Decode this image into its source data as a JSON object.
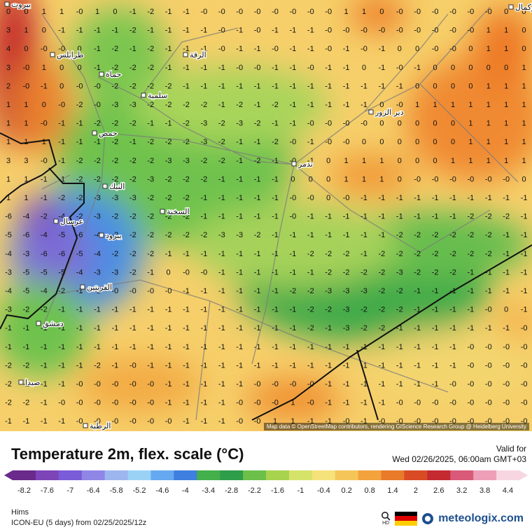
{
  "map": {
    "attribution": "Map data © OpenStreetMap contributors, rendering GIScience Research Group @ Heidelberg University",
    "cities": [
      "بيروت",
      "طرابلس",
      "حماة",
      "حمص",
      "سلمية",
      "الرقة",
      "دير الزور",
      "تدمر",
      "النبك",
      "عرسال",
      "يبرود",
      "دمشق",
      "السخنة",
      "البوكمال",
      "القريتين",
      "صيدا",
      "الرطبة"
    ],
    "grid_rows": [
      "0 0 1 1 -0 1 0 -1 -2 -1 -1 -0 -0 -0 -0 -0 -0 -0 -0 1 1 0 -0 -0 -0 -0 -0 -0 0 0",
      "3 1 0 -1 -1 -1 -1 -2 -1 -1 -1 -1 -0 -1 -0 -1 -1 -1 -0 -0 -0 -0 -0 -0 -0 -0 -0 1 1 0",
      "4 0 -0 -0 0 -1 -2 -1 -2 -1 -1 -1 -0 -1 -1 -0 -1 -1 -0 -1 -0 -1 0 0 -0 -0 0 1 1 0",
      "3 -0 1 0 0 -1 -2 -2 -2 -1 -1 -1 -1 -0 -0 -1 -1 -0 -1 -1 0 -1 -0 -1 0 0 0 0 0 1",
      "2 -0 -1 0 -0 -0 -2 -2 -2 -2 -1 -1 -1 -1 -1 -1 -1 -1 -1 -1 -1 -1 -1 0 0 0 0 1 1 1",
      "1 1 0 -0 -2 -0 -3 -3 -2 -2 -2 -2 -1 -2 -1 -2 -1 -1 -1 -1 -1 0 -0 1 1 1 1 1 1 1",
      "1 1 -0 -1 -1 -2 -2 -2 -1 -1 -2 -3 -2 -3 -2 -1 -1 -0 -0 -0 -0 0 0 0 0 0 1 1 1 1",
      "1 1 1 -1 -1 -1 -2 -1 -2 -2 -2 -3 -2 -1 -1 -2 -0 -1 -0 -0 0 0 0 0 0 0 1 1 1 1",
      "3 3 -0 -1 -2 -2 -2 -2 -2 -3 -3 -2 -2 -1 -2 -1 -0 -1 0 1 1 1 0 0 0 1 1 1 1 1",
      "1 1 -1 -1 -2 -2 -2 -2 -3 -2 -2 -2 -1 -1 -1 -1 0 0 0 1 1 1 0 -0 -0 -0 -0 -0 -0 0",
      "1 1 -1 -2 -2 -3 -3 -3 -2 -2 -2 -1 -1 -1 -1 -1 -0 -0 0 -0 -1 -1 -1 -1 -1 -1 -1 -1 -1 -1",
      "-6 -4 -2 -4 -2 -3 -2 -2 -2 -2 -2 -1 -1 -1 -1 -1 -0 -1 -1 -1 -1 -1 -1 -1 -1 -1 -2 -2 -2 -1",
      "-5 -6 -4 -5 -6 -4 -2 -2 -2 -2 -2 -2 -3 -3 -2 -1 -1 -1 -1 -1 -1 -1 -2 -2 -2 -2 -2 -2 -1 -1",
      "-4 -3 -6 -6 -5 -4 -2 -2 -2 -1 -1 -1 -1 -1 -1 -1 -1 -2 -2 -2 -1 -2 -2 -2 -2 -2 -2 -2 -1 -1",
      "-3 -5 -5 -5 -4 -3 -3 -2 -1 0 -0 -0 -1 -1 -1 -1 -1 -1 -2 -2 -2 -2 -3 -2 -2 -2 -1 -1 -1 -1",
      "-4 -5 -4 -2 -1 -1 -0 -0 -0 -0 -1 -1 -1 -1 -1 -1 -2 -2 -3 -3 -3 -2 -2 -1 -1 -1 -1 -1 -1 -1",
      "-3 -2 -2 -1 -1 -1 -1 -1 -1 -1 -1 -1 -1 -1 -1 -1 -1 -2 -2 -3 -2 -2 -2 -1 -1 -1 -1 -0 0 -1",
      "-1 -1 -1 -1 -1 -1 -1 -1 -1 -1 -1 -1 -1 -1 -1 -1 -1 -2 -1 -3 -2 -2 -1 -1 -1 -1 -1 -1 -1 -0",
      "-1 -1 -1 -1 -1 -1 -1 -1 -1 -1 -1 -1 -1 -1 -1 -1 -1 -1 -1 -1 -1 -1 -1 -1 -1 -1 -0 -0 -0 -0",
      "-2 -2 -1 -1 -1 -2 -1 -0 -1 -1 -1 -1 -1 -1 -1 -1 -1 -1 -1 -1 -1 -1 -1 -1 -1 -1 -0 -0 -0 -0",
      "-2 -2 -1 -1 -0 -0 -0 -0 -0 -1 -1 -1 -1 -1 -0 -0 -0 -0 -1 -1 -1 -1 -1 -1 -1 -0 -0 -0 -0 -0",
      "-2 -2 -1 -0 -0 -0 -0 -0 -0 -1 -1 -1 -1 -0 -0 -0 1 -0 -1 -1 -1 -1 -0 -0 -0 -0 -0 -0 -0 -0",
      "-1 -1 -1 -1 -0 -0 -0 -0 -0 -0 -1 -1 -1 -0 -0 1 1 -1 -1 -0 -1 -0 -0 -0 -0 -0 -0 -0 -0 -0"
    ]
  },
  "legend": {
    "title": "Temperature 2m, flex. scale (°C)",
    "valid_label": "Valid for",
    "valid_time": "Wed 02/26/2025, 06:00am GMT+03",
    "ticks": [
      "-8.2",
      "-7.6",
      "-7",
      "-6.4",
      "-5.8",
      "-5.2",
      "-4.6",
      "-4",
      "-3.4",
      "-2.8",
      "-2.2",
      "-1.6",
      "-1",
      "-0.4",
      "0.2",
      "0.8",
      "1.4",
      "2",
      "2.6",
      "3.2",
      "3.8",
      "4.4"
    ],
    "colors": [
      "#6a2a8c",
      "#7d45b8",
      "#7a5bd8",
      "#8f86e6",
      "#9eb6f0",
      "#9ad2f6",
      "#67a9f0",
      "#3f7fe0",
      "#44b04c",
      "#2f9e4a",
      "#6cc04a",
      "#a8d34f",
      "#d6e36a",
      "#f5e27a",
      "#f6c55a",
      "#f3a23e",
      "#e87b2a",
      "#d94b25",
      "#c52a30",
      "#d95a78",
      "#ee9fb8",
      "#f7d6e2"
    ],
    "model_region": "Hims",
    "model_run": "ICON-EU (5 days) from 02/25/2025/12z",
    "hd_label": "HD",
    "brand": "meteologix.com"
  }
}
